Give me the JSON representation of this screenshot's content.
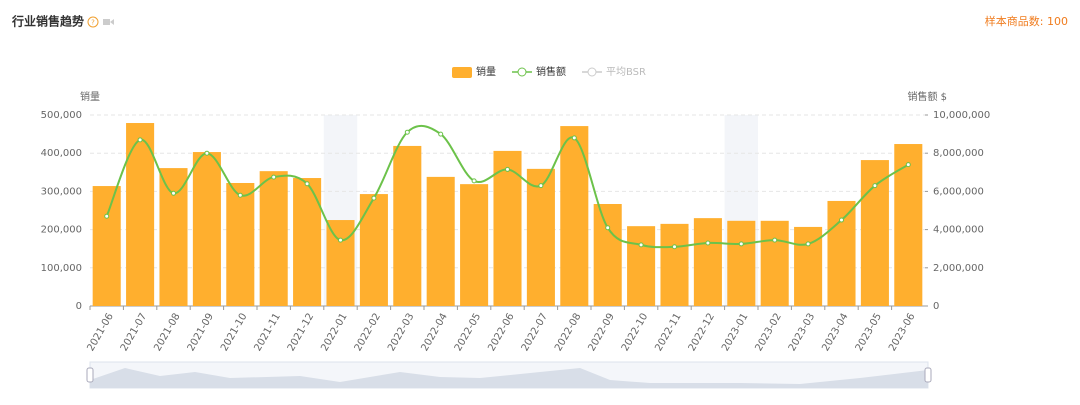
{
  "header": {
    "title": "行业销售趋势",
    "sample_label": "样本商品数: 100"
  },
  "chart_data": {
    "type": "bar-line",
    "categories": [
      "2021-06",
      "2021-07",
      "2021-08",
      "2021-09",
      "2021-10",
      "2021-11",
      "2021-12",
      "2022-01",
      "2022-02",
      "2022-03",
      "2022-04",
      "2022-05",
      "2022-06",
      "2022-07",
      "2022-08",
      "2022-09",
      "2022-10",
      "2022-11",
      "2022-12",
      "2023-01",
      "2023-02",
      "2023-03",
      "2023-04",
      "2023-05",
      "2023-06"
    ],
    "series": [
      {
        "name": "销量",
        "type": "bar",
        "color": "#ffaf2e",
        "axis": "y",
        "values": [
          314000,
          479000,
          361000,
          403000,
          322000,
          353000,
          335000,
          225000,
          293000,
          419000,
          338000,
          319000,
          406000,
          359000,
          471000,
          267000,
          209000,
          215000,
          230000,
          223000,
          223000,
          207000,
          275000,
          382000,
          424000
        ]
      },
      {
        "name": "销售额",
        "type": "line",
        "color": "#6cc24a",
        "axis": "y2",
        "values": [
          4700000,
          8700000,
          5900000,
          8000000,
          5800000,
          6750000,
          6400000,
          3450000,
          5650000,
          9100000,
          9000000,
          6550000,
          7150000,
          6300000,
          8800000,
          4100000,
          3200000,
          3100000,
          3300000,
          3250000,
          3450000,
          3250000,
          4500000,
          6300000,
          7400000
        ]
      }
    ],
    "hidden_series": [
      {
        "name": "平均BSR",
        "color": "#cccccc"
      }
    ],
    "ylabel": "销量",
    "y2label": "销售额 $",
    "ylim": [
      0,
      500000
    ],
    "yticks": [
      0,
      {
        "value": 100000,
        "label": "100,000"
      },
      {
        "value": 200000,
        "label": "200,000"
      },
      {
        "value": 300000,
        "label": "300,000"
      },
      {
        "value": 400000,
        "label": "400,000"
      },
      {
        "value": 500000,
        "label": "500,000"
      }
    ],
    "y2lim": [
      0,
      10000000
    ],
    "y2ticks": [
      0,
      {
        "value": 2000000,
        "label": "2,000,000"
      },
      {
        "value": 4000000,
        "label": "4,000,000"
      },
      {
        "value": 6000000,
        "label": "6,000,000"
      },
      {
        "value": 8000000,
        "label": "8,000,000"
      },
      {
        "value": 10000000,
        "label": "10,000,000"
      }
    ],
    "grid": true
  }
}
